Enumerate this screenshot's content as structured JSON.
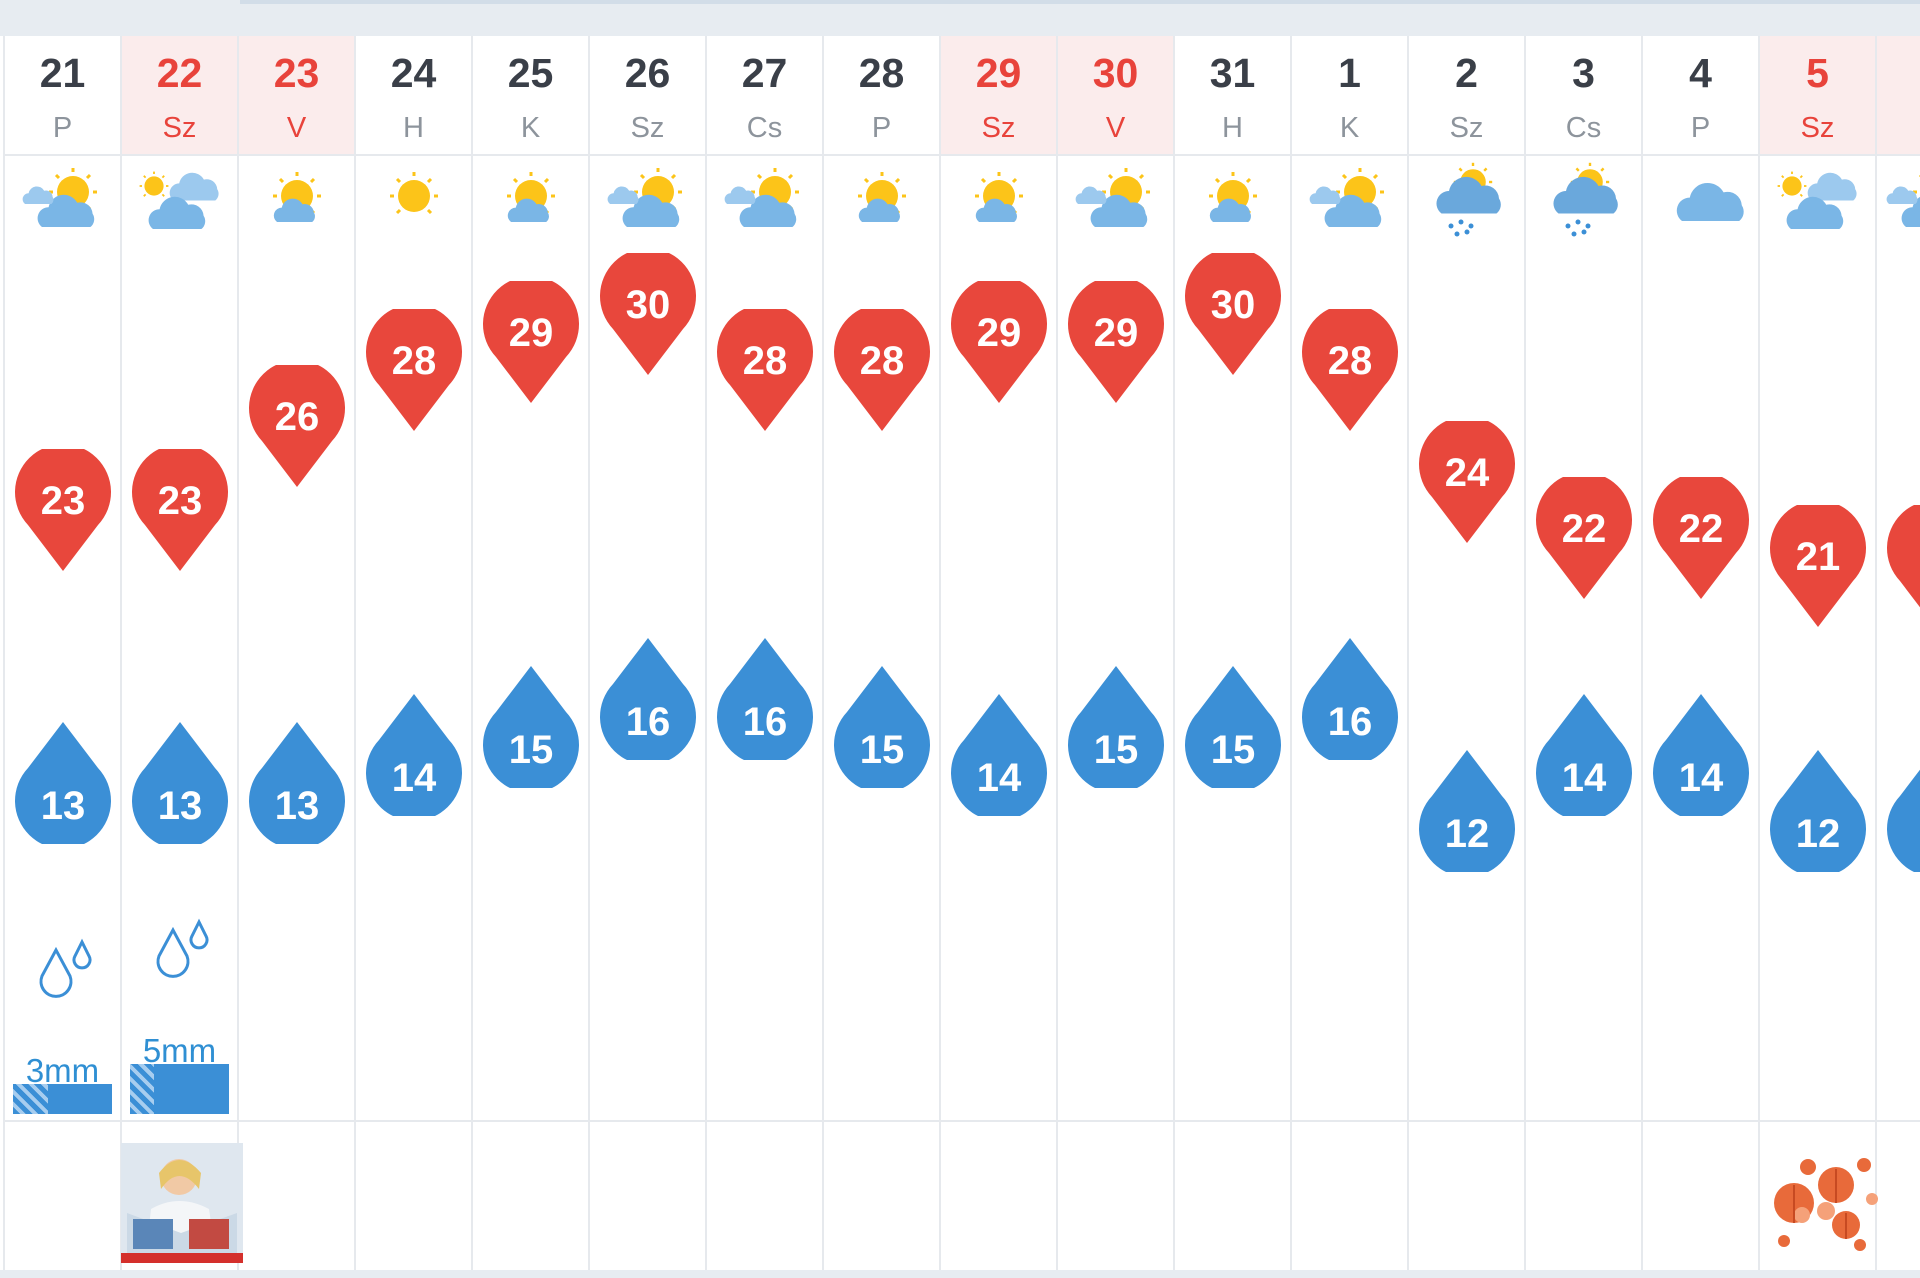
{
  "days": [
    {
      "num": "21",
      "weekday": "P",
      "highlight": false,
      "icon": "partly-cloudy-icon",
      "max": "23",
      "min": "13",
      "precip": "3mm"
    },
    {
      "num": "22",
      "weekday": "Sz",
      "highlight": true,
      "icon": "mostly-cloudy-icon",
      "max": "23",
      "min": "13",
      "precip": "5mm"
    },
    {
      "num": "23",
      "weekday": "V",
      "highlight": true,
      "icon": "mostly-sunny-icon",
      "max": "26",
      "min": "13",
      "precip": ""
    },
    {
      "num": "24",
      "weekday": "H",
      "highlight": false,
      "icon": "sunny-icon",
      "max": "28",
      "min": "14",
      "precip": ""
    },
    {
      "num": "25",
      "weekday": "K",
      "highlight": false,
      "icon": "mostly-sunny-icon",
      "max": "29",
      "min": "15",
      "precip": ""
    },
    {
      "num": "26",
      "weekday": "Sz",
      "highlight": false,
      "icon": "partly-cloudy-icon",
      "max": "30",
      "min": "16",
      "precip": ""
    },
    {
      "num": "27",
      "weekday": "Cs",
      "highlight": false,
      "icon": "partly-cloudy-icon",
      "max": "28",
      "min": "16",
      "precip": ""
    },
    {
      "num": "28",
      "weekday": "P",
      "highlight": false,
      "icon": "mostly-sunny-icon",
      "max": "28",
      "min": "15",
      "precip": ""
    },
    {
      "num": "29",
      "weekday": "Sz",
      "highlight": true,
      "icon": "mostly-sunny-icon",
      "max": "29",
      "min": "14",
      "precip": ""
    },
    {
      "num": "30",
      "weekday": "V",
      "highlight": true,
      "icon": "partly-cloudy-icon",
      "max": "29",
      "min": "15",
      "precip": ""
    },
    {
      "num": "31",
      "weekday": "H",
      "highlight": false,
      "icon": "mostly-sunny-icon",
      "max": "30",
      "min": "15",
      "precip": ""
    },
    {
      "num": "1",
      "weekday": "K",
      "highlight": false,
      "icon": "partly-cloudy-icon",
      "max": "28",
      "min": "16",
      "precip": ""
    },
    {
      "num": "2",
      "weekday": "Sz",
      "highlight": false,
      "icon": "rain-showers-icon",
      "max": "24",
      "min": "12",
      "precip": ""
    },
    {
      "num": "3",
      "weekday": "Cs",
      "highlight": false,
      "icon": "rain-showers-icon",
      "max": "22",
      "min": "14",
      "precip": ""
    },
    {
      "num": "4",
      "weekday": "P",
      "highlight": false,
      "icon": "cloudy-icon",
      "max": "22",
      "min": "14",
      "precip": ""
    },
    {
      "num": "5",
      "weekday": "Sz",
      "highlight": true,
      "icon": "mostly-cloudy-icon",
      "max": "21",
      "min": "12",
      "precip": ""
    },
    {
      "num": "",
      "weekday": "",
      "highlight": true,
      "icon": "partly-cloudy-icon",
      "max": "",
      "min": "",
      "precip": ""
    }
  ],
  "precip_fill": [
    0.6,
    0.7
  ],
  "images": {
    "col2": "magazine-reader-thumbnail",
    "col16": "autumn-leaves-thumbnail"
  },
  "colors": {
    "max_pin": "#e8473c",
    "min_pin": "#3b8fd6",
    "weekend_text": "#e8433b",
    "weekend_bg": "#fbecec",
    "sun": "#fcc419",
    "cloud": "#7ab6e6"
  }
}
